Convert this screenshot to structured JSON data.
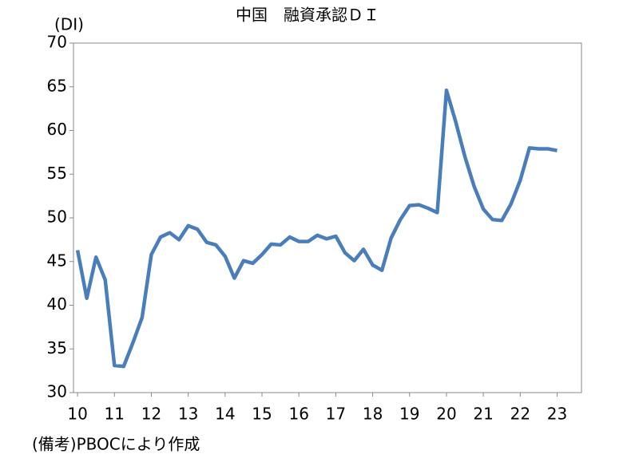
{
  "chart_data": {
    "type": "line",
    "title": "中国　融資承認ＤＩ",
    "y_label": "(DI)",
    "note": "(備考)PBOCにより作成",
    "x": [
      10,
      10.25,
      10.5,
      10.75,
      11,
      11.25,
      11.5,
      11.75,
      12,
      12.25,
      12.5,
      12.75,
      13,
      13.25,
      13.5,
      13.75,
      14,
      14.25,
      14.5,
      14.75,
      15,
      15.25,
      15.5,
      15.75,
      16,
      16.25,
      16.5,
      16.75,
      17,
      17.25,
      17.5,
      17.75,
      18,
      18.25,
      18.5,
      18.75,
      19,
      19.25,
      19.5,
      19.75,
      20,
      20.25,
      20.5,
      20.75,
      21,
      21.25,
      21.5,
      21.75,
      22,
      22.25,
      22.5,
      22.75,
      23
    ],
    "series": [
      {
        "color": "#4a7ebb",
        "values": [
          46.3,
          40.8,
          45.5,
          42.9,
          33.1,
          33.0,
          35.7,
          38.6,
          45.8,
          47.8,
          48.3,
          47.5,
          49.1,
          48.7,
          47.2,
          46.9,
          45.6,
          43.1,
          45.1,
          44.8,
          45.8,
          47.0,
          46.9,
          47.8,
          47.3,
          47.3,
          48.0,
          47.6,
          47.9,
          46.0,
          45.1,
          46.4,
          44.6,
          44.0,
          47.7,
          49.8,
          51.4,
          51.5,
          51.1,
          50.6,
          64.6,
          61.0,
          57.0,
          53.6,
          51.0,
          49.8,
          49.7,
          51.6,
          54.3,
          58.0,
          57.9,
          57.9,
          57.7
        ]
      }
    ],
    "xlim": [
      9.89,
      23.66
    ],
    "xticks": [
      10,
      11,
      12,
      13,
      14,
      15,
      16,
      17,
      18,
      19,
      20,
      21,
      22,
      23
    ],
    "ylim": [
      30,
      70
    ],
    "yticks": [
      30,
      35,
      40,
      45,
      50,
      55,
      60,
      65,
      70
    ]
  }
}
